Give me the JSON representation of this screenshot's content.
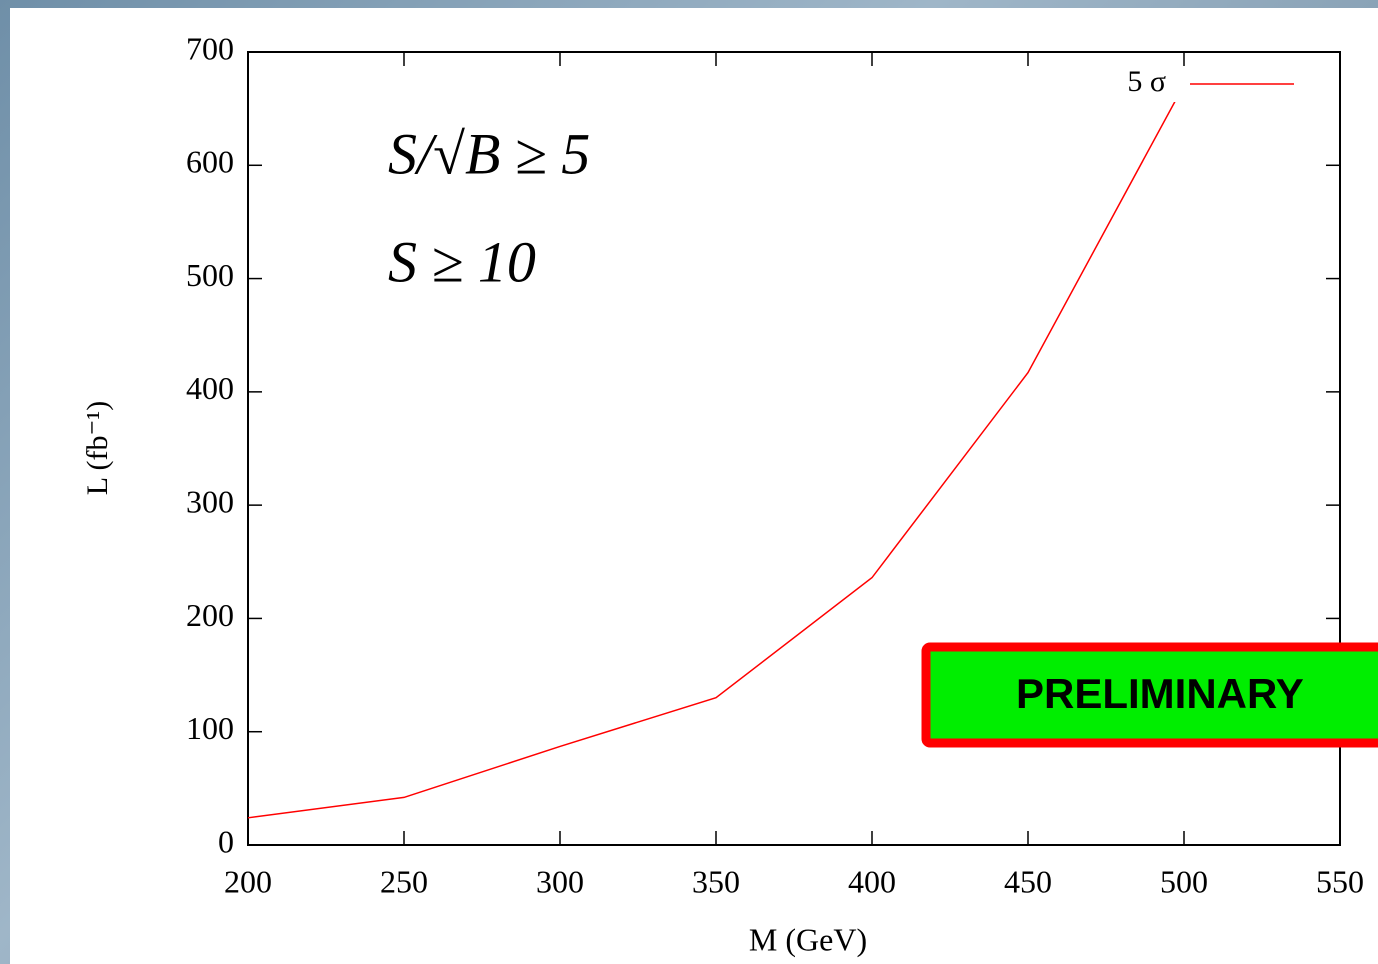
{
  "chart_data": {
    "type": "line",
    "x_label": "M (GeV)",
    "y_label": "L (fb⁻¹)",
    "x": [
      200,
      250,
      300,
      350,
      400,
      450,
      500
    ],
    "series": [
      {
        "name": "5 σ",
        "color": "#ff0000",
        "values": [
          24,
          42,
          87,
          130,
          236,
          417,
          671
        ]
      }
    ],
    "xlim": [
      200,
      550
    ],
    "xticks": [
      200,
      250,
      300,
      350,
      400,
      450,
      500,
      550
    ],
    "ylim": [
      0,
      700
    ],
    "yticks": [
      0,
      100,
      200,
      300,
      400,
      500,
      600,
      700
    ],
    "legend": "top-right",
    "annotations": [
      "S/√B ≥ 5",
      "S ≥ 10"
    ],
    "stamp": "PRELIMINARY"
  }
}
